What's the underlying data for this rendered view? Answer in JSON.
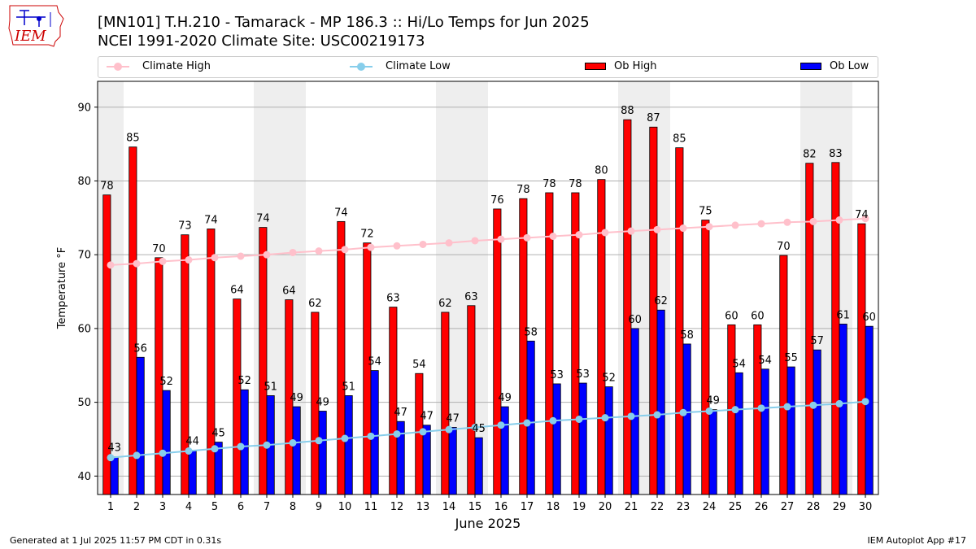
{
  "header": {
    "title_line1": "[MN101] T.H.210 - Tamarack - MP 186.3  :: Hi/Lo Temps for Jun 2025",
    "title_line2": "NCEI 1991-2020 Climate Site: USC00219173",
    "logo_text": "IEM"
  },
  "colors": {
    "ob_high": "#ff0000",
    "ob_low": "#0000ff",
    "climate_high": "#ffc0cb",
    "climate_low": "#87ceeb",
    "weekend_band": "#eeeeee",
    "grid": "#b0b0b0"
  },
  "chart_data": {
    "type": "bar",
    "xlabel": "June 2025",
    "ylabel": "Temperature °F",
    "ylim": [
      37.5,
      93.5
    ],
    "yticks": [
      40,
      50,
      60,
      70,
      80,
      90
    ],
    "grid": "horizontal",
    "legend_position": "top",
    "categories": [
      "1",
      "2",
      "3",
      "4",
      "5",
      "6",
      "7",
      "8",
      "9",
      "10",
      "11",
      "12",
      "13",
      "14",
      "15",
      "16",
      "17",
      "18",
      "19",
      "20",
      "21",
      "22",
      "23",
      "24",
      "25",
      "26",
      "27",
      "28",
      "29",
      "30"
    ],
    "weekend_days": [
      1,
      7,
      8,
      14,
      15,
      21,
      22,
      28,
      29
    ],
    "series": [
      {
        "name": "Ob High",
        "kind": "bar",
        "values": [
          78,
          85,
          70,
          73,
          74,
          64,
          74,
          64,
          62,
          74,
          72,
          63,
          54,
          62,
          63,
          76,
          78,
          78,
          78,
          80,
          88,
          87,
          85,
          75,
          60,
          60,
          70,
          82,
          83,
          74
        ],
        "plotted": [
          78.1,
          84.6,
          69.6,
          72.7,
          73.5,
          64.0,
          73.7,
          63.9,
          62.2,
          74.5,
          71.6,
          62.9,
          53.9,
          62.2,
          63.1,
          76.2,
          77.6,
          78.4,
          78.4,
          80.2,
          88.3,
          87.3,
          84.5,
          74.7,
          60.5,
          60.5,
          69.9,
          82.4,
          82.5,
          74.2
        ]
      },
      {
        "name": "Ob Low",
        "kind": "bar",
        "values": [
          43,
          56,
          52,
          44,
          45,
          52,
          51,
          49,
          49,
          51,
          54,
          47,
          47,
          47,
          45,
          49,
          58,
          53,
          53,
          52,
          60,
          62,
          58,
          49,
          54,
          54,
          55,
          57,
          61,
          60
        ],
        "plotted": [
          42.6,
          56.1,
          51.6,
          43.5,
          44.6,
          51.7,
          50.9,
          49.4,
          48.8,
          50.9,
          54.3,
          47.4,
          46.9,
          46.6,
          45.2,
          49.4,
          58.3,
          52.5,
          52.6,
          52.1,
          60.0,
          62.5,
          57.9,
          49.0,
          54.0,
          54.5,
          54.8,
          57.1,
          60.6,
          60.3
        ]
      },
      {
        "name": "Climate High",
        "kind": "line",
        "values": [
          68.6,
          68.8,
          69.1,
          69.3,
          69.6,
          69.8,
          70.0,
          70.3,
          70.5,
          70.7,
          71.0,
          71.2,
          71.4,
          71.6,
          71.9,
          72.1,
          72.3,
          72.5,
          72.7,
          73.0,
          73.2,
          73.4,
          73.6,
          73.8,
          74.0,
          74.2,
          74.4,
          74.5,
          74.7,
          74.9
        ]
      },
      {
        "name": "Climate Low",
        "kind": "line",
        "values": [
          42.5,
          42.8,
          43.1,
          43.4,
          43.7,
          44.0,
          44.2,
          44.5,
          44.8,
          45.1,
          45.4,
          45.7,
          46.0,
          46.3,
          46.6,
          46.9,
          47.2,
          47.5,
          47.7,
          47.9,
          48.1,
          48.3,
          48.6,
          48.8,
          49.0,
          49.2,
          49.4,
          49.6,
          49.8,
          50.1
        ]
      }
    ]
  },
  "footer": {
    "left": "Generated at 1 Jul 2025 11:57 PM CDT in 0.31s",
    "right": "IEM Autoplot App #17"
  }
}
